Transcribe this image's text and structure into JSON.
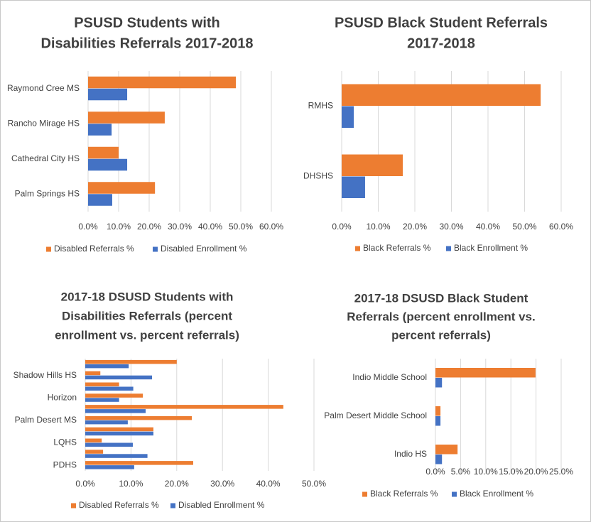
{
  "chart_data": [
    {
      "type": "bar",
      "orientation": "horizontal",
      "title": [
        "PSUSD Students with",
        "Disabilities Referrals 2017-2018"
      ],
      "categories": [
        "Raymond Cree MS",
        "Rancho Mirage HS",
        "Cathedral City HS",
        "Palm Springs HS"
      ],
      "series": [
        {
          "name": "Disabled Referrals %",
          "color": "#ed7d31",
          "values": [
            48.4,
            25.1,
            10.0,
            21.9
          ]
        },
        {
          "name": "Disabled Enrollment %",
          "color": "#4472c4",
          "values": [
            12.8,
            7.7,
            12.8,
            7.9
          ]
        }
      ],
      "xlim": [
        0,
        60
      ],
      "xticks": [
        {
          "value": 0,
          "label": "0.0%"
        },
        {
          "value": 10,
          "label": "10.0%"
        },
        {
          "value": 20,
          "label": "20.0%"
        },
        {
          "value": 30,
          "label": "30.0%"
        },
        {
          "value": 40,
          "label": "40.0%"
        },
        {
          "value": 50,
          "label": "50.0%"
        },
        {
          "value": 60,
          "label": "60.0%"
        }
      ],
      "grid": true,
      "legend": "bottom"
    },
    {
      "type": "bar",
      "orientation": "horizontal",
      "title": [
        "PSUSD Black Student Referrals",
        "2017-2018"
      ],
      "categories": [
        "RMHS",
        "DHSHS"
      ],
      "series": [
        {
          "name": "Black Referrals %",
          "color": "#ed7d31",
          "values": [
            54.4,
            16.7
          ]
        },
        {
          "name": "Black Enrollment %",
          "color": "#4472c4",
          "values": [
            3.3,
            6.4
          ]
        }
      ],
      "xlim": [
        0,
        60
      ],
      "xticks": [
        {
          "value": 0,
          "label": "0.0%"
        },
        {
          "value": 10,
          "label": "10.0%"
        },
        {
          "value": 20,
          "label": "20.0%"
        },
        {
          "value": 30,
          "label": "30.0%"
        },
        {
          "value": 40,
          "label": "40.0%"
        },
        {
          "value": 50,
          "label": "50.0%"
        },
        {
          "value": 60,
          "label": "60.0%"
        }
      ],
      "grid": true,
      "legend": "bottom"
    },
    {
      "type": "bar",
      "orientation": "horizontal",
      "title": [
        "2017-18 DSUSD Students with",
        "Disabilities Referrals (percent",
        "enrollment vs. percent referrals)"
      ],
      "categories": [
        null,
        "Shadow Hills HS",
        null,
        "Horizon",
        null,
        "Palm Desert MS",
        null,
        "LQHS",
        null,
        "PDHS"
      ],
      "series": [
        {
          "name": "Disabled Referrals %",
          "color": "#ed7d31",
          "values": [
            20.0,
            3.3,
            7.4,
            12.6,
            43.3,
            23.3,
            14.9,
            3.6,
            3.9,
            23.6
          ]
        },
        {
          "name": "Disabled Enrollment %",
          "color": "#4472c4",
          "values": [
            9.5,
            14.6,
            10.5,
            7.4,
            13.2,
            9.3,
            14.9,
            10.4,
            13.6,
            10.7
          ]
        }
      ],
      "xlim": [
        0,
        50
      ],
      "xticks": [
        {
          "value": 0,
          "label": "0.0%"
        },
        {
          "value": 10,
          "label": "10.0%"
        },
        {
          "value": 20,
          "label": "20.0%"
        },
        {
          "value": 30,
          "label": "30.0%"
        },
        {
          "value": 40,
          "label": "40.0%"
        },
        {
          "value": 50,
          "label": "50.0%"
        }
      ],
      "grid": true,
      "legend": "bottom"
    },
    {
      "type": "bar",
      "orientation": "horizontal",
      "title": [
        "2017-18 DSUSD Black Student",
        "Referrals (percent enrollment vs.",
        "percent referrals)"
      ],
      "categories": [
        "Indio Middle School",
        "Palm Desert Middle School",
        "Indio HS"
      ],
      "series": [
        {
          "name": "Black Referrals %",
          "color": "#ed7d31",
          "values": [
            19.9,
            1.0,
            4.4
          ]
        },
        {
          "name": "Black Enrollment %",
          "color": "#4472c4",
          "values": [
            1.3,
            1.0,
            1.3
          ]
        }
      ],
      "xlim": [
        0,
        25
      ],
      "xticks": [
        {
          "value": 0,
          "label": "0.0%"
        },
        {
          "value": 5,
          "label": "5.0%"
        },
        {
          "value": 10,
          "label": "10.0%"
        },
        {
          "value": 15,
          "label": "15.0%"
        },
        {
          "value": 20,
          "label": "20.0%"
        },
        {
          "value": 25,
          "label": "25.0%"
        }
      ],
      "grid": true,
      "legend": "bottom"
    }
  ]
}
